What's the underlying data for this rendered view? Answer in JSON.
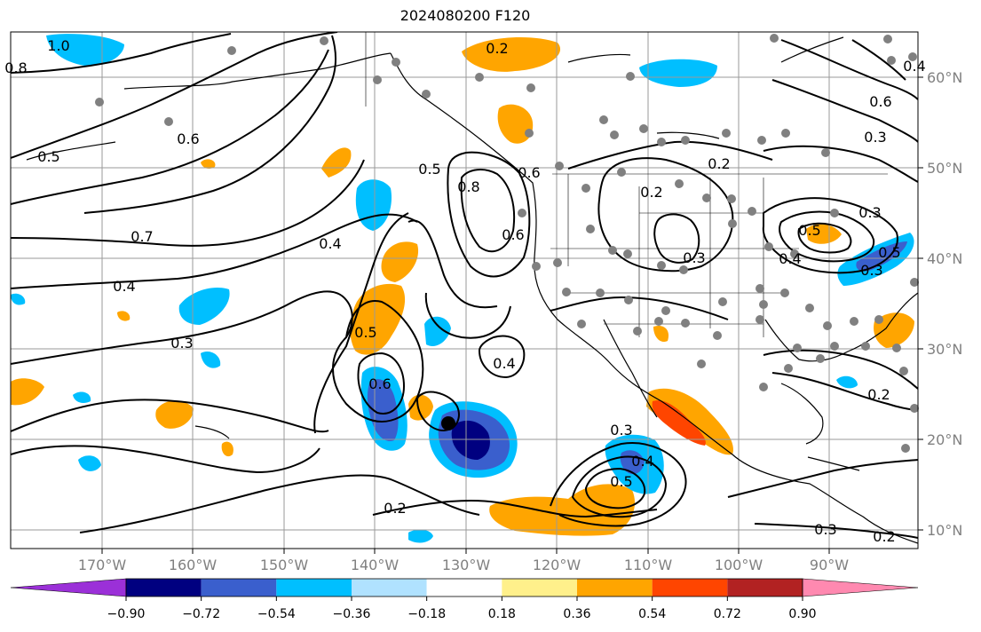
{
  "title": "2024080200 F120",
  "lon_labels": [
    "170°W",
    "160°W",
    "150°W",
    "140°W",
    "130°W",
    "120°W",
    "110°W",
    "100°W",
    "90°W"
  ],
  "lat_labels": [
    "60°N",
    "50°N",
    "40°N",
    "30°N",
    "20°N",
    "10°N"
  ],
  "colorbar": {
    "colors": [
      "#9b30d8",
      "#000080",
      "#3a5fcd",
      "#00bfff",
      "#b0e2ff",
      "#ffffff",
      "#fff08b",
      "#ffa500",
      "#ff4500",
      "#b22222",
      "#ff89b0"
    ],
    "ticks": [
      "−0.90",
      "−0.72",
      "−0.54",
      "−0.36",
      "−0.18",
      "0.18",
      "0.36",
      "0.54",
      "0.72",
      "0.90"
    ]
  },
  "contour_labels": [
    "1.0",
    "0.8",
    "0.7",
    "0.6",
    "0.5",
    "0.4",
    "0.3",
    "0.2",
    "0.2",
    "0.5",
    "0.8",
    "0.6",
    "0.6",
    "0.5",
    "0.4",
    "0.4",
    "0.3",
    "0.2",
    "0.3",
    "0.4",
    "0.5",
    "0.6",
    "0.5",
    "0.3",
    "0.2",
    "0.3",
    "0.4",
    "0.5",
    "0.6",
    "0.3",
    "0.2",
    "0.2",
    "0.4",
    "0.3"
  ],
  "storm_center_marker": "filled-circle"
}
